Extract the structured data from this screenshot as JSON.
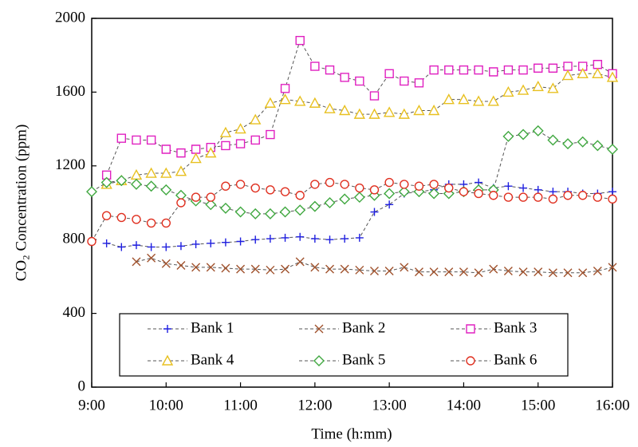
{
  "chart_data": {
    "type": "line",
    "x_label": "Time (h:mm)",
    "y_label": "CO₂ Concentration (ppm)",
    "x": [
      9,
      9.2,
      9.4,
      9.6,
      9.8,
      10,
      10.2,
      10.4,
      10.6,
      10.8,
      11,
      11.2,
      11.4,
      11.6,
      11.8,
      12,
      12.2,
      12.4,
      12.6,
      12.8,
      13,
      13.2,
      13.4,
      13.6,
      13.8,
      14,
      14.2,
      14.4,
      14.6,
      14.8,
      15,
      15.2,
      15.4,
      15.6,
      15.8,
      16
    ],
    "xlim": [
      9,
      16
    ],
    "xticks": [
      {
        "value": 9,
        "label": "9:00"
      },
      {
        "value": 10,
        "label": "10:00"
      },
      {
        "value": 11,
        "label": "11:00"
      },
      {
        "value": 12,
        "label": "12:00"
      },
      {
        "value": 13,
        "label": "13:00"
      },
      {
        "value": 14,
        "label": "14:00"
      },
      {
        "value": 15,
        "label": "15:00"
      },
      {
        "value": 16,
        "label": "16:00"
      }
    ],
    "ylim": [
      0,
      2000
    ],
    "yticks": [
      0,
      400,
      800,
      1200,
      1600,
      2000
    ],
    "grid": false,
    "legend": "bottom",
    "series": [
      {
        "name": "Bank 1",
        "color": "#1f1fe0",
        "marker": "plus",
        "values": [
          null,
          780,
          760,
          770,
          760,
          760,
          765,
          775,
          780,
          785,
          790,
          800,
          805,
          810,
          815,
          805,
          800,
          805,
          810,
          950,
          990,
          1050,
          1060,
          1070,
          1100,
          1100,
          1110,
          1080,
          1090,
          1080,
          1070,
          1060,
          1060,
          1050,
          1050,
          1060
        ]
      },
      {
        "name": "Bank 2",
        "color": "#a0522d",
        "marker": "x",
        "values": [
          null,
          null,
          null,
          680,
          700,
          670,
          660,
          650,
          650,
          645,
          640,
          640,
          635,
          640,
          680,
          650,
          640,
          640,
          635,
          630,
          630,
          650,
          625,
          625,
          625,
          625,
          620,
          640,
          630,
          625,
          625,
          620,
          620,
          620,
          630,
          650
        ]
      },
      {
        "name": "Bank 3",
        "color": "#e020c0",
        "marker": "square",
        "values": [
          null,
          1150,
          1350,
          1340,
          1340,
          1290,
          1270,
          1290,
          1300,
          1310,
          1320,
          1340,
          1370,
          1620,
          1880,
          1740,
          1720,
          1680,
          1660,
          1580,
          1700,
          1660,
          1650,
          1720,
          1720,
          1720,
          1720,
          1710,
          1720,
          1720,
          1730,
          1730,
          1740,
          1740,
          1750,
          1700
        ]
      },
      {
        "name": "Bank 4",
        "color": "#e8c020",
        "marker": "triangle",
        "values": [
          null,
          1100,
          1120,
          1150,
          1160,
          1160,
          1170,
          1240,
          1270,
          1380,
          1400,
          1450,
          1540,
          1560,
          1550,
          1540,
          1510,
          1500,
          1480,
          1480,
          1490,
          1480,
          1500,
          1500,
          1560,
          1560,
          1550,
          1550,
          1600,
          1610,
          1630,
          1620,
          1690,
          1700,
          1700,
          1680
        ]
      },
      {
        "name": "Bank 5",
        "color": "#40a840",
        "marker": "diamond",
        "values": [
          1060,
          1110,
          1120,
          1100,
          1090,
          1070,
          1040,
          1010,
          990,
          970,
          950,
          940,
          940,
          950,
          960,
          980,
          1000,
          1020,
          1030,
          1040,
          1050,
          1060,
          1060,
          1050,
          1050,
          1060,
          1070,
          1070,
          1360,
          1370,
          1390,
          1340,
          1320,
          1330,
          1310,
          1290
        ]
      },
      {
        "name": "Bank 6",
        "color": "#e03020",
        "marker": "circle",
        "values": [
          790,
          930,
          920,
          910,
          890,
          890,
          1000,
          1030,
          1030,
          1090,
          1100,
          1080,
          1070,
          1060,
          1040,
          1100,
          1110,
          1100,
          1080,
          1070,
          1110,
          1100,
          1090,
          1100,
          1080,
          1060,
          1050,
          1040,
          1030,
          1030,
          1030,
          1020,
          1040,
          1040,
          1030,
          1020
        ]
      }
    ]
  }
}
